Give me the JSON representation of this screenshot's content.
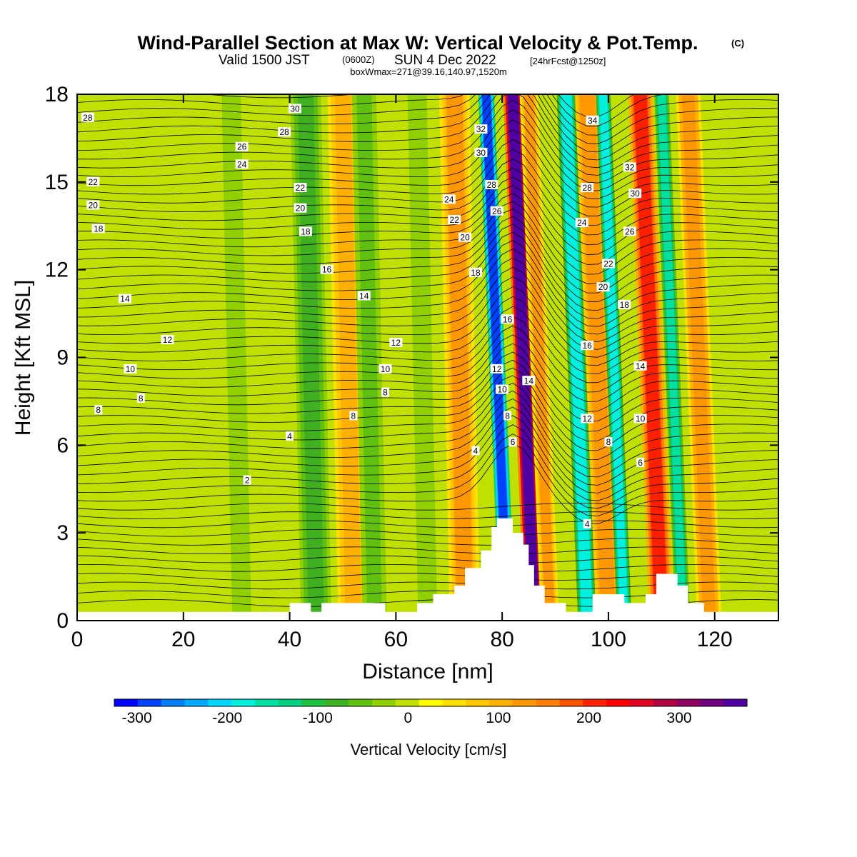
{
  "title": {
    "main": "Wind-Parallel Section at Max W: Vertical Velocity & Pot.Temp.",
    "main_suffix": "(C)",
    "valid_prefix": "Valid 1500 JST",
    "valid_z": "(0600Z)",
    "valid_date": "SUN 4 Dec 2022",
    "forecast": "[24hrFcst@1250z]",
    "boxmax": "boxWmax=271@39.16,140.97,1520m"
  },
  "colors": {
    "colorbar": [
      "#0000ff",
      "#0040ff",
      "#0080ff",
      "#00a8ff",
      "#00d8ff",
      "#00f0e0",
      "#00e0a0",
      "#00d080",
      "#20c040",
      "#40b020",
      "#60c010",
      "#90d000",
      "#c0e000",
      "#ffff00",
      "#ffe000",
      "#ffc800",
      "#ffb000",
      "#ff9800",
      "#ff8000",
      "#ff5000",
      "#ff2000",
      "#ff0000",
      "#e00020",
      "#b00040",
      "#900060",
      "#700080",
      "#5000a0"
    ],
    "terrain": "#ffffff",
    "contour": "#000000"
  },
  "chart_data": {
    "type": "heatmap",
    "xlabel": "Distance [nm]",
    "ylabel": "Height [Kft MSL]",
    "xlim": [
      0,
      132
    ],
    "ylim": [
      0,
      18
    ],
    "x_ticks": [
      0,
      20,
      40,
      60,
      80,
      100,
      120
    ],
    "y_ticks": [
      0,
      3,
      6,
      9,
      12,
      15,
      18
    ],
    "colorbar": {
      "title": "Vertical Velocity [cm/s]",
      "ticks": [
        -300,
        -200,
        -100,
        0,
        100,
        200,
        300
      ],
      "min": -325,
      "max": 375,
      "step": 25
    },
    "vertical_velocity_bands": [
      {
        "x": 31,
        "w": 2,
        "value": -50
      },
      {
        "x": 45,
        "w": 2.5,
        "value": -80
      },
      {
        "x": 52,
        "w": 2.5,
        "value": 80
      },
      {
        "x": 56,
        "w": 2,
        "value": -60
      },
      {
        "x": 66,
        "w": 2,
        "value": -40
      },
      {
        "x": 73,
        "w": 2.5,
        "value": 100
      },
      {
        "x": 81,
        "w": 1.3,
        "value": -300
      },
      {
        "x": 86,
        "w": 1.6,
        "value": 330
      },
      {
        "x": 89,
        "w": 1.5,
        "value": 100
      },
      {
        "x": 96,
        "w": 1.5,
        "value": -200
      },
      {
        "x": 100,
        "w": 2,
        "value": 120
      },
      {
        "x": 103,
        "w": 1.2,
        "value": -180
      },
      {
        "x": 110,
        "w": 2,
        "value": 180
      },
      {
        "x": 114,
        "w": 1.2,
        "value": -160
      },
      {
        "x": 119,
        "w": 2,
        "value": 110
      }
    ],
    "terrain_profile": [
      [
        0,
        0.3
      ],
      [
        40,
        0.3
      ],
      [
        40,
        0.6
      ],
      [
        44,
        0.6
      ],
      [
        44,
        0.3
      ],
      [
        46,
        0.3
      ],
      [
        46,
        0.6
      ],
      [
        58,
        0.6
      ],
      [
        58,
        0.3
      ],
      [
        64,
        0.3
      ],
      [
        64,
        0.6
      ],
      [
        67,
        0.6
      ],
      [
        67,
        0.9
      ],
      [
        71,
        0.9
      ],
      [
        71,
        1.2
      ],
      [
        73,
        1.2
      ],
      [
        73,
        1.8
      ],
      [
        76,
        1.8
      ],
      [
        76,
        2.4
      ],
      [
        78,
        2.4
      ],
      [
        78,
        3.2
      ],
      [
        79,
        3.2
      ],
      [
        79,
        3.5
      ],
      [
        82,
        3.5
      ],
      [
        82,
        3.0
      ],
      [
        84,
        3.0
      ],
      [
        84,
        2.6
      ],
      [
        85,
        2.6
      ],
      [
        85,
        1.9
      ],
      [
        86,
        1.9
      ],
      [
        86,
        1.2
      ],
      [
        88,
        1.2
      ],
      [
        88,
        0.6
      ],
      [
        92,
        0.6
      ],
      [
        92,
        0.3
      ],
      [
        97,
        0.3
      ],
      [
        97,
        0.9
      ],
      [
        103,
        0.9
      ],
      [
        103,
        0.6
      ],
      [
        107,
        0.6
      ],
      [
        107,
        0.9
      ],
      [
        109,
        0.9
      ],
      [
        109,
        1.6
      ],
      [
        113,
        1.6
      ],
      [
        113,
        1.2
      ],
      [
        115,
        1.2
      ],
      [
        115,
        0.6
      ],
      [
        118,
        0.6
      ],
      [
        118,
        0.3
      ],
      [
        132,
        0.3
      ]
    ],
    "theta_labels": [
      {
        "x": 2,
        "y": 17.2,
        "text": "28"
      },
      {
        "x": 41,
        "y": 17.5,
        "text": "30"
      },
      {
        "x": 39,
        "y": 16.7,
        "text": "28"
      },
      {
        "x": 31,
        "y": 16.2,
        "text": "26"
      },
      {
        "x": 31,
        "y": 15.6,
        "text": "24"
      },
      {
        "x": 3,
        "y": 15.0,
        "text": "22"
      },
      {
        "x": 42,
        "y": 14.8,
        "text": "22"
      },
      {
        "x": 3,
        "y": 14.2,
        "text": "20"
      },
      {
        "x": 42,
        "y": 14.1,
        "text": "20"
      },
      {
        "x": 4,
        "y": 13.4,
        "text": "18"
      },
      {
        "x": 43,
        "y": 13.3,
        "text": "18"
      },
      {
        "x": 47,
        "y": 12.0,
        "text": "16"
      },
      {
        "x": 9,
        "y": 11.0,
        "text": "14"
      },
      {
        "x": 54,
        "y": 11.1,
        "text": "14"
      },
      {
        "x": 17,
        "y": 9.6,
        "text": "12"
      },
      {
        "x": 60,
        "y": 9.5,
        "text": "12"
      },
      {
        "x": 10,
        "y": 8.6,
        "text": "10"
      },
      {
        "x": 58,
        "y": 8.6,
        "text": "10"
      },
      {
        "x": 12,
        "y": 7.6,
        "text": "8"
      },
      {
        "x": 58,
        "y": 7.8,
        "text": "8"
      },
      {
        "x": 4,
        "y": 7.2,
        "text": "8"
      },
      {
        "x": 52,
        "y": 7.0,
        "text": "8"
      },
      {
        "x": 40,
        "y": 6.3,
        "text": "4"
      },
      {
        "x": 75,
        "y": 5.8,
        "text": "4"
      },
      {
        "x": 32,
        "y": 4.8,
        "text": "2"
      },
      {
        "x": 76,
        "y": 16.8,
        "text": "32"
      },
      {
        "x": 76,
        "y": 16.0,
        "text": "30"
      },
      {
        "x": 78,
        "y": 14.9,
        "text": "28"
      },
      {
        "x": 79,
        "y": 14.0,
        "text": "26"
      },
      {
        "x": 70,
        "y": 14.4,
        "text": "24"
      },
      {
        "x": 71,
        "y": 13.7,
        "text": "22"
      },
      {
        "x": 73,
        "y": 13.1,
        "text": "20"
      },
      {
        "x": 75,
        "y": 11.9,
        "text": "18"
      },
      {
        "x": 81,
        "y": 10.3,
        "text": "16"
      },
      {
        "x": 79,
        "y": 8.6,
        "text": "12"
      },
      {
        "x": 80,
        "y": 7.9,
        "text": "10"
      },
      {
        "x": 81,
        "y": 7.0,
        "text": "8"
      },
      {
        "x": 82,
        "y": 6.1,
        "text": "6"
      },
      {
        "x": 85,
        "y": 8.2,
        "text": "14"
      },
      {
        "x": 97,
        "y": 17.1,
        "text": "34"
      },
      {
        "x": 104,
        "y": 15.5,
        "text": "32"
      },
      {
        "x": 105,
        "y": 14.6,
        "text": "30"
      },
      {
        "x": 96,
        "y": 14.8,
        "text": "28"
      },
      {
        "x": 104,
        "y": 13.3,
        "text": "26"
      },
      {
        "x": 95,
        "y": 13.6,
        "text": "24"
      },
      {
        "x": 100,
        "y": 12.2,
        "text": "22"
      },
      {
        "x": 99,
        "y": 11.4,
        "text": "20"
      },
      {
        "x": 103,
        "y": 10.8,
        "text": "18"
      },
      {
        "x": 96,
        "y": 9.4,
        "text": "16"
      },
      {
        "x": 106,
        "y": 8.7,
        "text": "14"
      },
      {
        "x": 96,
        "y": 6.9,
        "text": "12"
      },
      {
        "x": 106,
        "y": 6.9,
        "text": "10"
      },
      {
        "x": 100,
        "y": 6.1,
        "text": "8"
      },
      {
        "x": 106,
        "y": 5.4,
        "text": "6"
      },
      {
        "x": 96,
        "y": 3.3,
        "text": "4"
      }
    ]
  }
}
